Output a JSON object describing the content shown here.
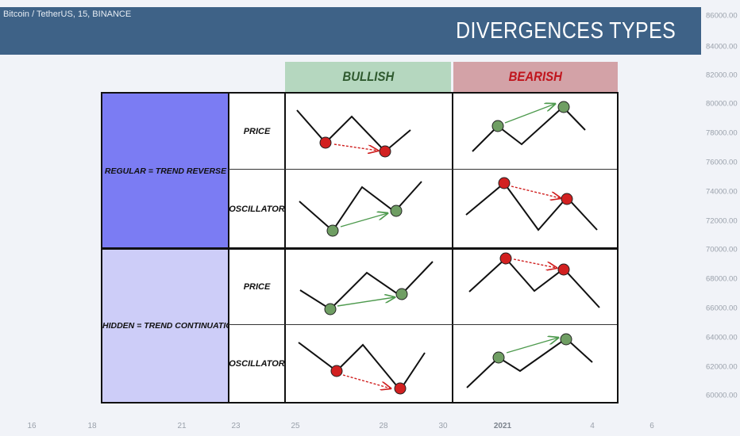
{
  "header": {
    "symbol": "Bitcoin / TetherUS, 15, BINANCE",
    "title": "DIVERGENCES TYPES"
  },
  "price_axis": [
    "86000.00",
    "84000.00",
    "82000.00",
    "80000.00",
    "78000.00",
    "76000.00",
    "74000.00",
    "72000.00",
    "70000.00",
    "68000.00",
    "66000.00",
    "64000.00",
    "62000.00",
    "60000.00"
  ],
  "time_axis": [
    "16",
    "18",
    "21",
    "23",
    "25",
    "28",
    "30",
    "2021",
    "4",
    "6"
  ],
  "columns": {
    "bullish": "BULLISH",
    "bearish": "BEARISH"
  },
  "rows": {
    "regular": "REGULAR = TREND REVERSE",
    "hidden": "HIDDEN = TREND CONTINUATION"
  },
  "labels": {
    "price": "PRICE",
    "oscillator": "OSCILLATOR"
  },
  "colors": {
    "banner": "#3e6287",
    "bullish_header": "#b5d7bf",
    "bearish_header": "#d3a2a7",
    "regular_row": "#7b7cf3",
    "hidden_row": "#cdcdf8",
    "green_dot": "#6f9e63",
    "red_dot": "#d22020"
  }
}
